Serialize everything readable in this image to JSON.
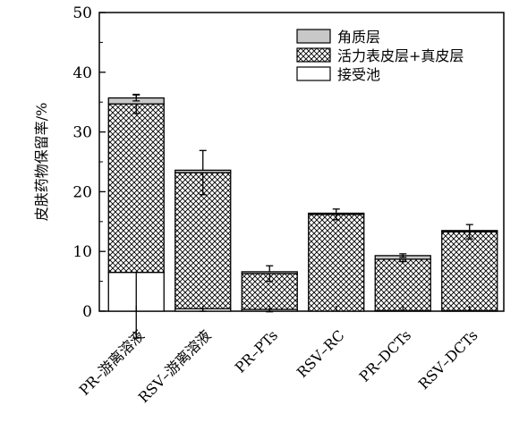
{
  "chart_data": {
    "type": "bar",
    "stacked": true,
    "categories": [
      "PR–游离溶液",
      "RSV–游离溶液",
      "PR–PTs",
      "RSV–RC",
      "PR–DCTs",
      "RSV–DCTs"
    ],
    "series": [
      {
        "name": "接受池",
        "values": [
          6.5,
          0.4,
          0.3,
          0.0,
          0.1,
          0.1
        ],
        "errors": [
          11.0,
          0.4,
          0.4,
          0.0,
          0.0,
          0.0
        ],
        "fill": "white",
        "color": "#ffffff"
      },
      {
        "name": "活力表皮层+真皮层",
        "values": [
          28.2,
          22.8,
          6.0,
          16.2,
          8.6,
          13.2
        ],
        "errors": [
          1.6,
          3.7,
          1.3,
          0.9,
          0.4,
          1.2
        ],
        "fill": "crosshatch",
        "color": "#000000"
      },
      {
        "name": "角质层",
        "values": [
          1.0,
          0.4,
          0.3,
          0.2,
          0.6,
          0.2
        ],
        "errors": [
          0.5,
          0.0,
          0.0,
          0.0,
          0.3,
          0.0
        ],
        "fill": "gray",
        "color": "#c8c8c8"
      }
    ],
    "ylabel": "皮肤药物保留率/%",
    "xlabel": "",
    "ylim": [
      0,
      50
    ],
    "yticks": [
      0,
      10,
      20,
      30,
      40,
      50
    ],
    "grid": false,
    "legend_position": "top-right"
  }
}
